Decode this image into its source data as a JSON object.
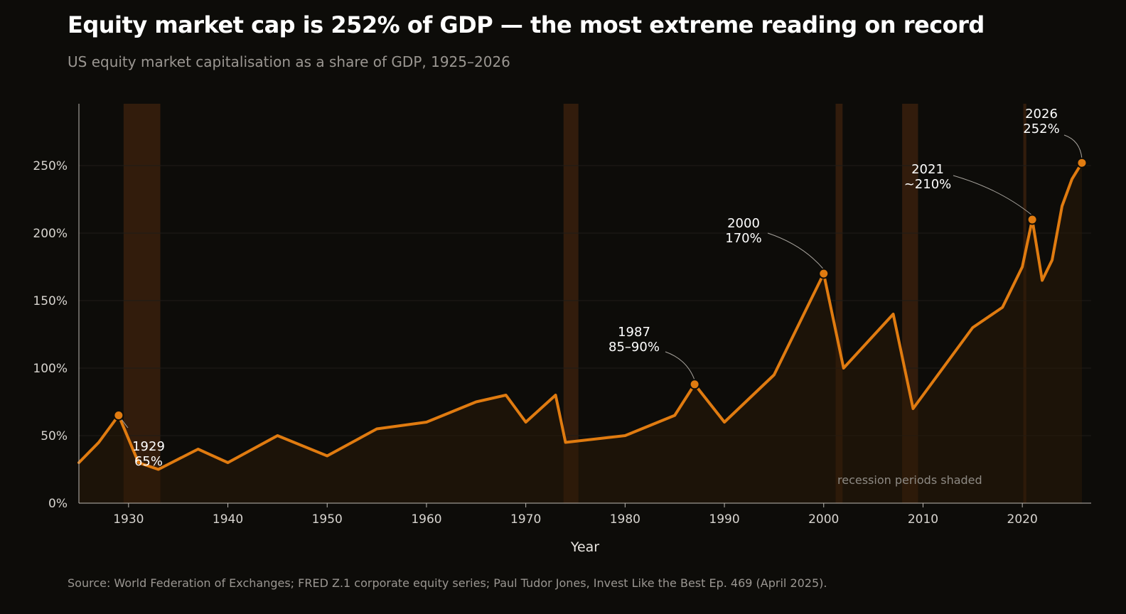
{
  "title": "Equity market cap is 252% of GDP — the most extreme reading on record",
  "subtitle": "US equity market capitalisation as a share of GDP, 1925–2026",
  "source": "Source: World Federation of Exchanges; FRED Z.1 corporate equity series; Paul Tudor Jones, Invest Like the Best Ep. 469 (April 2025).",
  "colors": {
    "line": "#e07b10",
    "area": "#1d160c",
    "recession": "#3a200d",
    "grid": "#1f1d19",
    "axis": "#bdb9b3",
    "background": "#0d0c09"
  },
  "chart_data": {
    "type": "line",
    "xlabel": "Year",
    "ylabel": "",
    "xlim": [
      1925,
      2027
    ],
    "ylim": [
      0,
      300
    ],
    "x_ticks": [
      1930,
      1940,
      1950,
      1960,
      1970,
      1980,
      1990,
      2000,
      2010,
      2020
    ],
    "y_ticks": [
      0,
      50,
      100,
      150,
      200,
      250
    ],
    "y_tick_labels": [
      "0%",
      "50%",
      "100%",
      "150%",
      "200%",
      "250%"
    ],
    "grid": true,
    "series": [
      {
        "x": [
          1925,
          1927,
          1929,
          1931,
          1933,
          1937,
          1940,
          1945,
          1950,
          1955,
          1960,
          1965,
          1968,
          1970,
          1973,
          1974,
          1980,
          1985,
          1987,
          1990,
          1995,
          2000,
          2002,
          2007,
          2009,
          2015,
          2018,
          2020,
          2021,
          2022,
          2023,
          2024,
          2025,
          2026
        ],
        "values": [
          30,
          45,
          65,
          30,
          25,
          40,
          30,
          50,
          35,
          55,
          60,
          75,
          80,
          60,
          80,
          45,
          50,
          65,
          88,
          60,
          95,
          170,
          100,
          140,
          70,
          130,
          145,
          175,
          210,
          165,
          180,
          220,
          240,
          252
        ]
      }
    ],
    "recessions": [
      [
        1929.5,
        1933.2
      ],
      [
        1973.8,
        1975.3
      ],
      [
        2001.2,
        2001.9
      ],
      [
        2007.9,
        2009.5
      ],
      [
        2020.1,
        2020.4
      ]
    ],
    "highlights": [
      {
        "x": 1929,
        "y": 65,
        "line1": "1929",
        "line2": "65%"
      },
      {
        "x": 1987,
        "y": 88,
        "line1": "1987",
        "line2": "85–90%"
      },
      {
        "x": 2000,
        "y": 170,
        "line1": "2000",
        "line2": "170%"
      },
      {
        "x": 2021,
        "y": 210,
        "line1": "2021",
        "line2": "~210%"
      },
      {
        "x": 2026,
        "y": 252,
        "line1": "2026",
        "line2": "252%"
      }
    ],
    "note": "recession periods shaded"
  }
}
